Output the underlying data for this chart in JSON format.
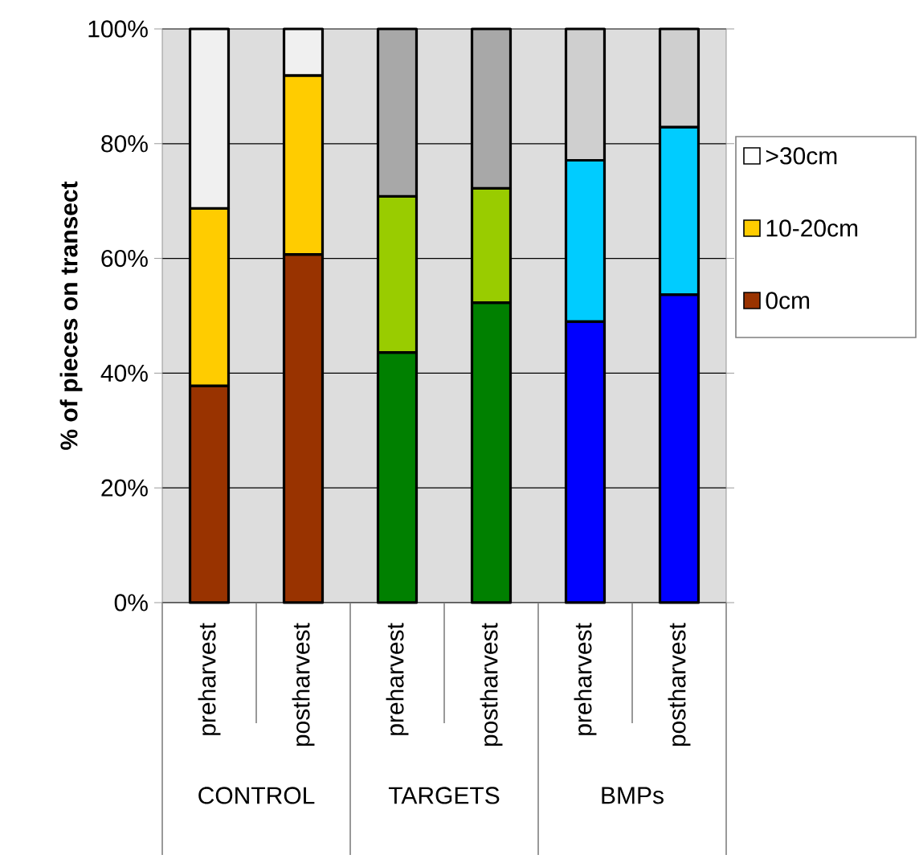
{
  "chart_data": {
    "type": "bar",
    "stacked": true,
    "ylabel": "% of pieces on transect",
    "categories": [
      "preharvest",
      "postharvest",
      "preharvest",
      "postharvest",
      "preharvest",
      "postharvest"
    ],
    "annotations": [
      "CONTROL",
      "TARGETS",
      "BMPs"
    ],
    "series": [
      {
        "name": "0cm",
        "color": "#993300",
        "colors": [
          "#993300",
          "#993300",
          "#008000",
          "#008000",
          "#0000ff",
          "#0000ff"
        ],
        "values": [
          37.8,
          60.7,
          43.6,
          52.3,
          49.0,
          53.7
        ]
      },
      {
        "name": "10-20cm",
        "color": "#ffcc00",
        "colors": [
          "#ffcc00",
          "#ffcc00",
          "#99cc00",
          "#99cc00",
          "#00ccff",
          "#00ccff"
        ],
        "values": [
          30.9,
          31.2,
          27.2,
          19.9,
          28.1,
          29.2
        ]
      },
      {
        "name": ">30cm",
        "color": "#ffffff",
        "colors": [
          "#f0f0f0",
          "#f0f0f0",
          "#a8a8a8",
          "#a8a8a8",
          "#cfcfcf",
          "#cfcfcf"
        ],
        "values": [
          31.3,
          8.1,
          29.2,
          27.8,
          22.9,
          17.1
        ]
      }
    ],
    "ylim": [
      0,
      100
    ],
    "yticks": [
      {
        "value": 0,
        "label": "0%"
      },
      {
        "value": 20,
        "label": "20%"
      },
      {
        "value": 40,
        "label": "40%"
      },
      {
        "value": 60,
        "label": "60%"
      },
      {
        "value": 80,
        "label": "80%"
      },
      {
        "value": 100,
        "label": "100%"
      }
    ],
    "grid": "y",
    "legend": "right"
  }
}
